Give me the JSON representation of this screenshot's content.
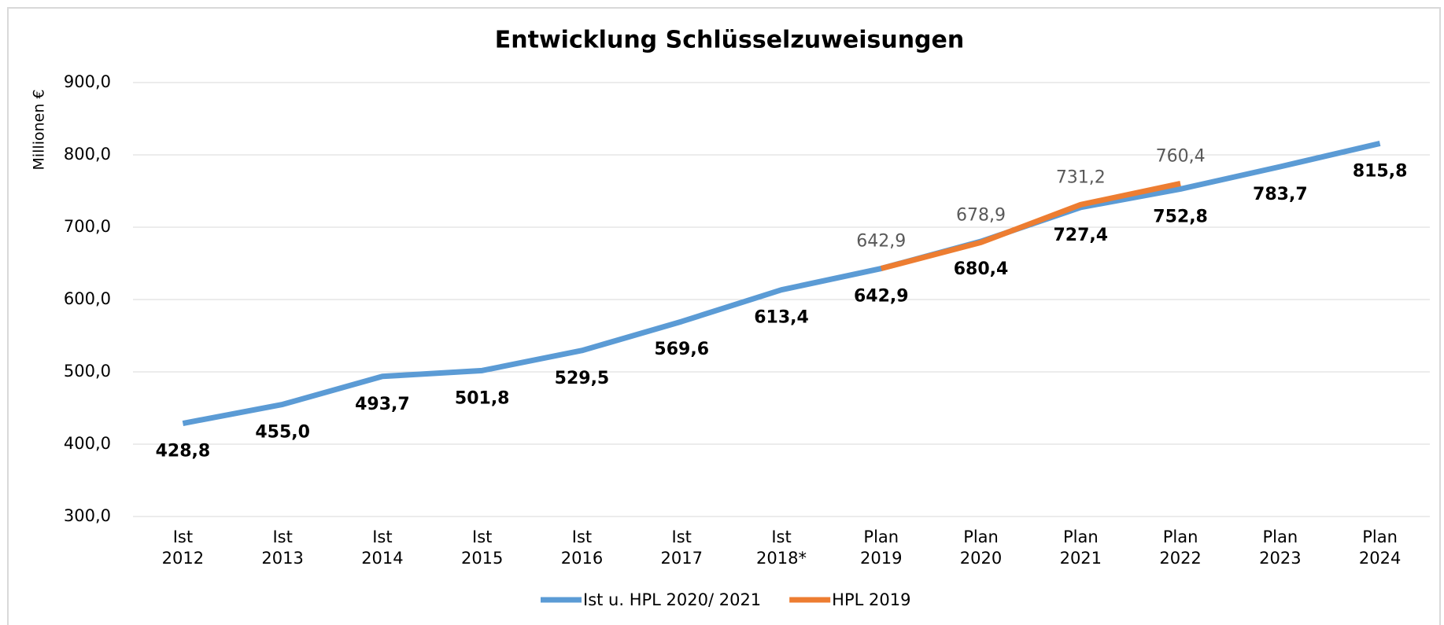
{
  "chart_data": {
    "type": "line",
    "title": "Entwicklung  Schlüsselzuweisungen",
    "y_label": "Millionen €",
    "categories": [
      [
        "Ist",
        "2012"
      ],
      [
        "Ist",
        "2013"
      ],
      [
        "Ist",
        "2014"
      ],
      [
        "Ist",
        "2015"
      ],
      [
        "Ist",
        "2016"
      ],
      [
        "Ist",
        "2017"
      ],
      [
        "Ist",
        "2018*"
      ],
      [
        "Plan",
        "2019"
      ],
      [
        "Plan",
        "2020"
      ],
      [
        "Plan",
        "2021"
      ],
      [
        "Plan",
        "2022"
      ],
      [
        "Plan",
        "2023"
      ],
      [
        "Plan",
        "2024"
      ]
    ],
    "series": [
      {
        "name": "Ist u. HPL 2020/ 2021",
        "color": "#5b9bd5",
        "label_position": "below",
        "values": [
          428.8,
          455.0,
          493.7,
          501.8,
          529.5,
          569.6,
          613.4,
          642.9,
          680.4,
          727.4,
          752.8,
          783.7,
          815.8
        ],
        "value_labels": [
          "428,8",
          "455,0",
          "493,7",
          "501,8",
          "529,5",
          "569,6",
          "613,4",
          "642,9",
          "680,4",
          "727,4",
          "752,8",
          "783,7",
          "815,8"
        ]
      },
      {
        "name": "HPL 2019",
        "color": "#ed7d31",
        "label_position": "above",
        "values": [
          null,
          null,
          null,
          null,
          null,
          null,
          null,
          642.9,
          678.9,
          731.2,
          760.4,
          null,
          null
        ],
        "value_labels": [
          null,
          null,
          null,
          null,
          null,
          null,
          null,
          "642,9",
          "678,9",
          "731,2",
          "760,4",
          null,
          null
        ]
      }
    ],
    "ylim": [
      300,
      900
    ],
    "yticks": [
      {
        "value": 300,
        "label": "300,0"
      },
      {
        "value": 400,
        "label": "400,0"
      },
      {
        "value": 500,
        "label": "500,0"
      },
      {
        "value": 600,
        "label": "600,0"
      },
      {
        "value": 700,
        "label": "700,0"
      },
      {
        "value": 800,
        "label": "800,0"
      },
      {
        "value": 900,
        "label": "900,0"
      }
    ],
    "grid": true,
    "legend": "bottom"
  }
}
